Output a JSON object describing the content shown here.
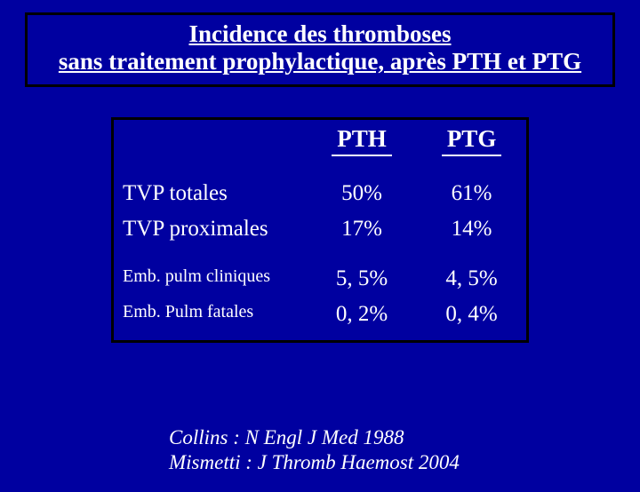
{
  "title": {
    "line1": "Incidence des thromboses",
    "line2": "sans traitement prophylactique, après PTH et PTG"
  },
  "table": {
    "headers": {
      "col1": "PTH",
      "col2": "PTG"
    },
    "group1": {
      "r1_label": "TVP totales",
      "r1_c1": "50%",
      "r1_c2": "61%",
      "r2_label": "TVP proximales",
      "r2_c1": "17%",
      "r2_c2": "14%"
    },
    "group2": {
      "r1_label": "Emb. pulm cliniques",
      "r1_c1": "5, 5%",
      "r1_c2": "4, 5%",
      "r2_label": "Emb. Pulm fatales",
      "r2_c1": "0, 2%",
      "r2_c2": "0, 4%"
    }
  },
  "citation": {
    "line1": "Collins  : N Engl J Med 1988",
    "line2": "Mismetti  : J Thromb Haemost 2004"
  },
  "colors": {
    "background": "#0000a0",
    "text": "#ffffff",
    "border": "#000000"
  }
}
